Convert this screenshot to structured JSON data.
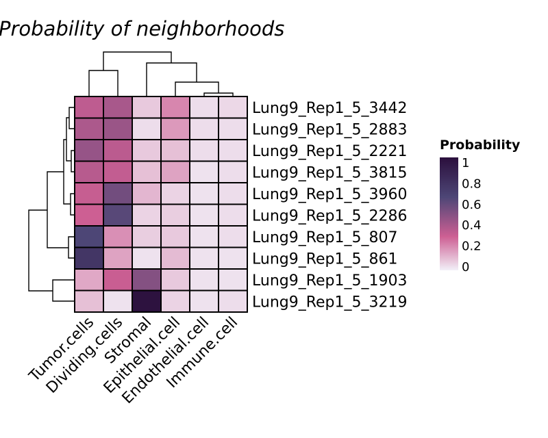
{
  "chart_data": {
    "type": "heatmap",
    "title": "Probability of neighborhoods",
    "rows": [
      "Lung9_Rep1_5_3442",
      "Lung9_Rep1_5_2883",
      "Lung9_Rep1_5_2221",
      "Lung9_Rep1_5_3815",
      "Lung9_Rep1_5_3960",
      "Lung9_Rep1_5_2286",
      "Lung9_Rep1_5_807",
      "Lung9_Rep1_5_861",
      "Lung9_Rep1_5_1903",
      "Lung9_Rep1_5_3219"
    ],
    "columns": [
      "Tumor.cells",
      "Dividing.cells",
      "Stromal",
      "Epithelial.cell",
      "Endothelial.cell",
      "Immune.cell"
    ],
    "values": [
      [
        0.34,
        0.4,
        0.08,
        0.22,
        0.04,
        0.05
      ],
      [
        0.39,
        0.44,
        0.04,
        0.18,
        0.04,
        0.04
      ],
      [
        0.45,
        0.35,
        0.08,
        0.1,
        0.04,
        0.04
      ],
      [
        0.36,
        0.33,
        0.1,
        0.16,
        0.03,
        0.04
      ],
      [
        0.32,
        0.55,
        0.12,
        0.06,
        0.03,
        0.04
      ],
      [
        0.3,
        0.62,
        0.06,
        0.07,
        0.03,
        0.04
      ],
      [
        0.65,
        0.2,
        0.07,
        0.08,
        0.03,
        0.04
      ],
      [
        0.75,
        0.16,
        0.03,
        0.11,
        0.03,
        0.03
      ],
      [
        0.15,
        0.31,
        0.5,
        0.08,
        0.03,
        0.03
      ],
      [
        0.1,
        0.03,
        0.98,
        0.06,
        0.03,
        0.04
      ]
    ],
    "colorscale": [
      "#f2f0f8",
      "#cd5f93",
      "#4d4676",
      "#2b0f3c"
    ],
    "legend": {
      "title": "Probability",
      "ticks": [
        "1",
        "0.8",
        "0.6",
        "0.4",
        "0.2",
        "0"
      ],
      "placement": "right",
      "range": [
        0,
        1
      ]
    },
    "row_dendrogram": true,
    "column_dendrogram": true
  }
}
